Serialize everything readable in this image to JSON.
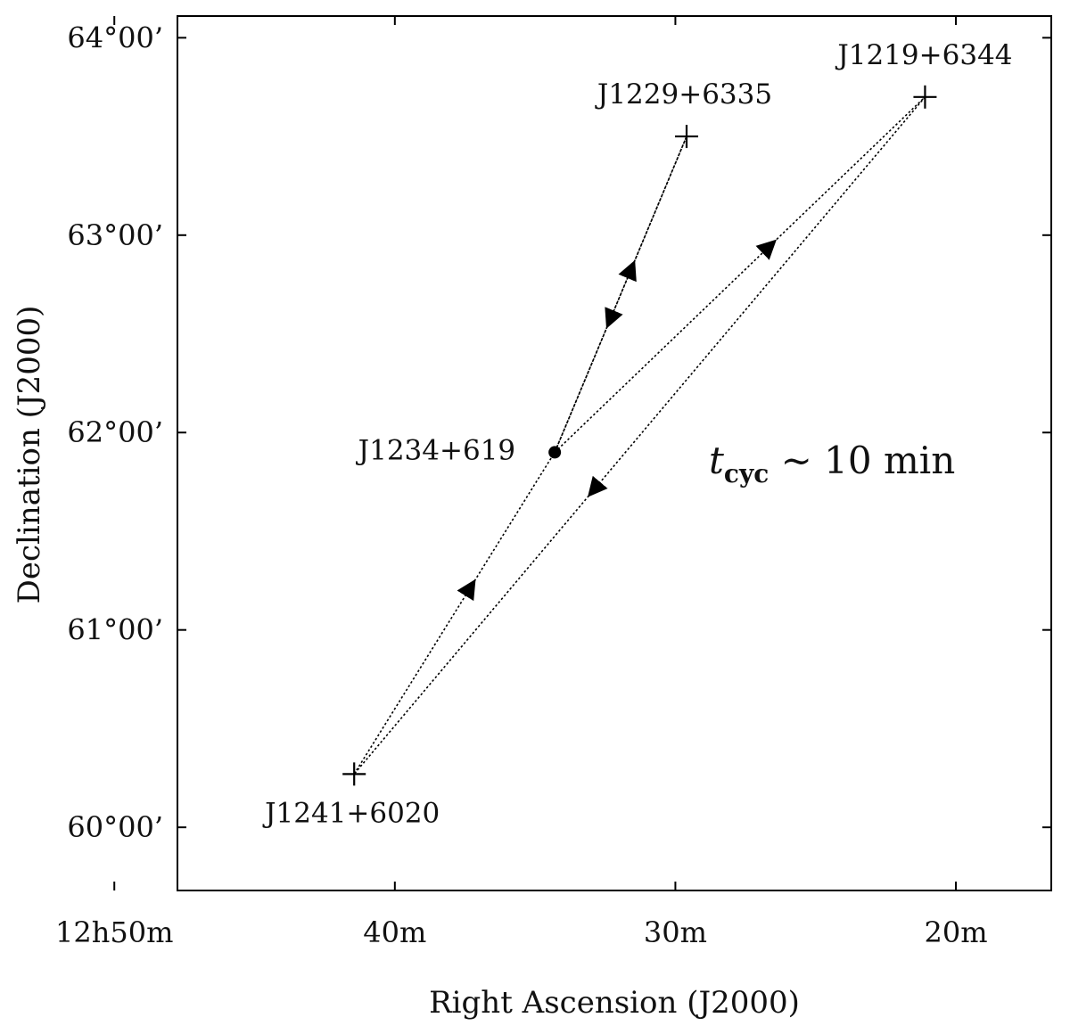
{
  "chart_data": {
    "type": "scatter",
    "xlabel": "Right Ascension (J2000)",
    "ylabel": "Declination (J2000)",
    "x_axis": {
      "unit": "minutes of RA (12h + value)",
      "range": [
        47.75,
        16.6
      ],
      "inverted": true,
      "ticks": [
        {
          "value": 50,
          "label": "12h50m"
        },
        {
          "value": 40,
          "label": "40m"
        },
        {
          "value": 30,
          "label": "30m"
        },
        {
          "value": 20,
          "label": "20m"
        }
      ]
    },
    "y_axis": {
      "unit": "degrees",
      "range": [
        59.68,
        64.11
      ],
      "ticks": [
        {
          "value": 60,
          "label": "60°00’"
        },
        {
          "value": 61,
          "label": "61°00’"
        },
        {
          "value": 62,
          "label": "62°00’"
        },
        {
          "value": 63,
          "label": "63°00’"
        },
        {
          "value": 64,
          "label": "64°00’"
        }
      ]
    },
    "grid": false,
    "sources": [
      {
        "id": "target",
        "name": "J1234+619",
        "marker": "dot",
        "ra_min": 34.3,
        "dec": 61.9
      },
      {
        "id": "cal1",
        "name": "J1229+6335",
        "marker": "plus",
        "ra_min": 29.6,
        "dec": 63.5
      },
      {
        "id": "cal2",
        "name": "J1219+6344",
        "marker": "plus",
        "ra_min": 21.1,
        "dec": 63.7
      },
      {
        "id": "cal3",
        "name": "J1241+6020",
        "marker": "plus",
        "ra_min": 41.45,
        "dec": 60.27
      }
    ],
    "cycle_path": [
      "target",
      "cal1",
      "target",
      "cal2",
      "cal3",
      "target"
    ],
    "annotation": {
      "t": "t",
      "subscript": "cyc",
      "rest": " ~ 10 min"
    }
  }
}
